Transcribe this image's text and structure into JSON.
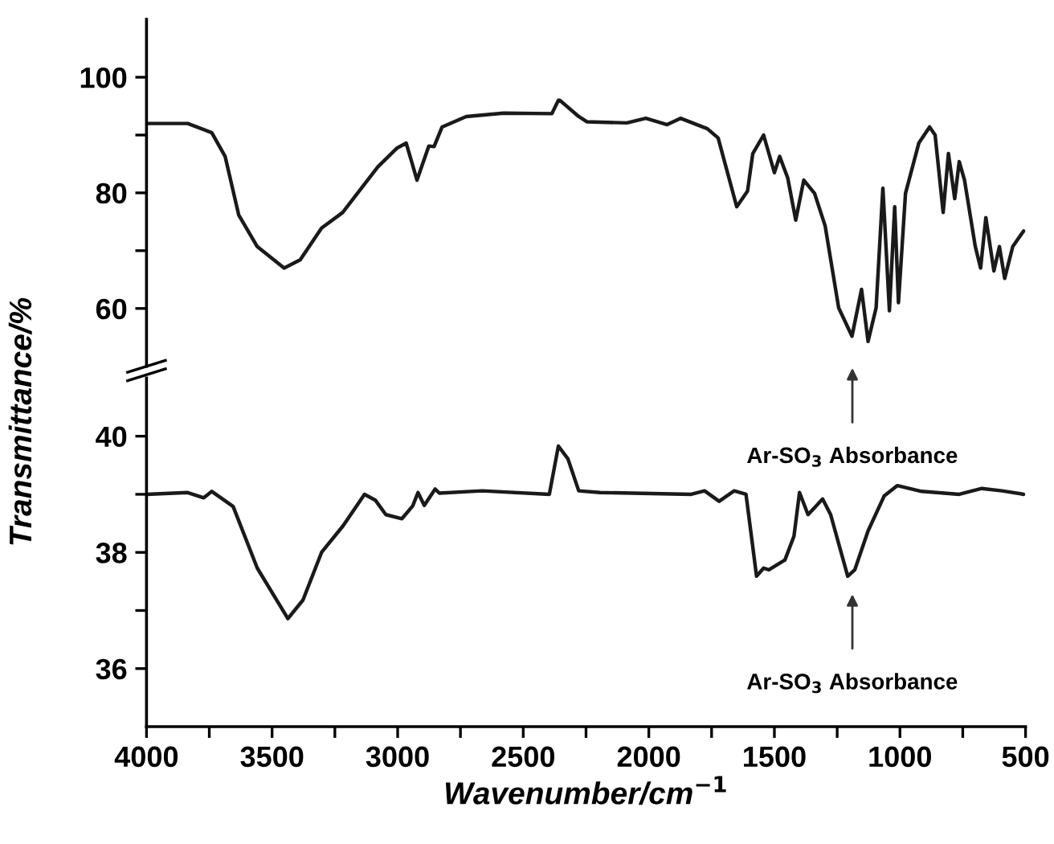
{
  "chart_data": [
    {
      "type": "line",
      "ylabel": "Transmittance/%",
      "xlim": [
        4000,
        500
      ],
      "ylim": [
        50,
        110
      ],
      "yticks": [
        60,
        {
          "value": 70,
          "label": null
        },
        80,
        {
          "value": 90,
          "label": null
        },
        100
      ],
      "tick_labels": "y",
      "annotations": [
        "Ar-SO$_{3}$ Absorbance"
      ],
      "series": [
        {
          "color": "#1a1a1a",
          "x": [
            4000,
            3836,
            3740,
            3687,
            3633,
            3559,
            3452,
            3388,
            3303,
            3219,
            3079,
            3004,
            2966,
            2923,
            2876,
            2855,
            2823,
            2727,
            2578,
            2386,
            2360,
            2354,
            2279,
            2247,
            2087,
            2012,
            1927,
            1874,
            1767,
            1724,
            1650,
            1607,
            1586,
            1543,
            1500,
            1479,
            1447,
            1415,
            1383,
            1340,
            1298,
            1244,
            1191,
            1153,
            1127,
            1095,
            1068,
            1042,
            1021,
            1006,
            978,
            925,
            882,
            860,
            828,
            807,
            782,
            764,
            743,
            700,
            679,
            658,
            626,
            604,
            583,
            551,
            508
          ],
          "values": [
            92.0,
            92.0,
            90.4,
            86.3,
            76.2,
            70.7,
            67.0,
            68.4,
            73.9,
            76.6,
            84.5,
            87.7,
            88.6,
            82.2,
            88.1,
            88.0,
            91.4,
            93.2,
            93.8,
            93.7,
            96.0,
            96.0,
            93.2,
            92.3,
            92.1,
            92.9,
            91.8,
            92.9,
            91.1,
            89.5,
            77.6,
            80.3,
            86.8,
            90.0,
            83.5,
            86.3,
            82.6,
            75.3,
            82.2,
            79.9,
            74.3,
            60.1,
            55.2,
            63.3,
            54.3,
            60.1,
            80.8,
            59.6,
            77.6,
            61.0,
            79.9,
            88.6,
            91.4,
            90.0,
            76.6,
            86.8,
            79.0,
            85.4,
            82.2,
            70.7,
            67.0,
            75.7,
            66.5,
            70.7,
            65.2,
            70.7,
            73.4
          ]
        }
      ]
    },
    {
      "type": "line",
      "xlabel": "Wavenumber/cm$^{−1}$",
      "xlim": [
        4000,
        500
      ],
      "xticks": [
        4000,
        {
          "value": 3750,
          "label": null
        },
        3500,
        {
          "value": 3250,
          "label": null
        },
        3000,
        {
          "value": 2750,
          "label": null
        },
        2500,
        {
          "value": 2250,
          "label": null
        },
        2000,
        {
          "value": 1750,
          "label": null
        },
        1500,
        {
          "value": 1250,
          "label": null
        },
        1000,
        {
          "value": 750,
          "label": null
        },
        500
      ],
      "ylim": [
        35,
        41
      ],
      "yticks": [
        36,
        {
          "value": 37,
          "label": null
        },
        38,
        {
          "value": 39,
          "label": null
        },
        40
      ],
      "annotations": [
        "Ar-SO$_{3}$ Absorbance"
      ],
      "series": [
        {
          "color": "#1a1a1a",
          "x": [
            4000,
            3836,
            3772,
            3740,
            3655,
            3559,
            3437,
            3377,
            3303,
            3217,
            3132,
            3089,
            3047,
            2983,
            2940,
            2919,
            2894,
            2851,
            2834,
            2663,
            2396,
            2360,
            2322,
            2279,
            2194,
            1831,
            1778,
            1720,
            1660,
            1613,
            1571,
            1543,
            1522,
            1458,
            1422,
            1400,
            1366,
            1308,
            1276,
            1208,
            1180,
            1127,
            1063,
            1010,
            914,
            764,
            674,
            594,
            508
          ],
          "values": [
            39.0,
            39.03,
            38.94,
            39.05,
            38.79,
            37.73,
            36.86,
            37.18,
            38.0,
            38.46,
            39.0,
            38.9,
            38.65,
            38.58,
            38.8,
            39.03,
            38.81,
            39.09,
            39.02,
            39.06,
            39.0,
            39.83,
            39.61,
            39.06,
            39.03,
            39.0,
            39.06,
            38.88,
            39.06,
            39.0,
            37.59,
            37.73,
            37.7,
            37.87,
            38.28,
            39.03,
            38.65,
            38.92,
            38.65,
            37.59,
            37.7,
            38.37,
            38.97,
            39.15,
            39.05,
            39.0,
            39.1,
            39.06,
            39.0
          ]
        }
      ]
    }
  ]
}
